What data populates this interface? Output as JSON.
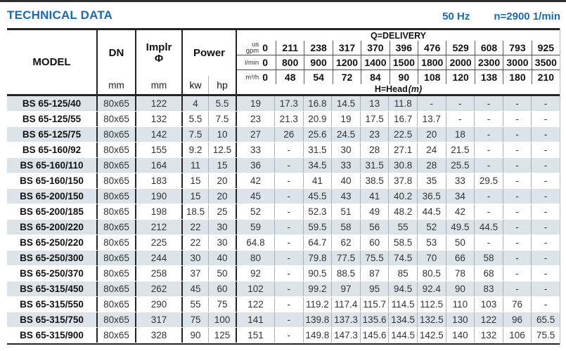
{
  "page": {
    "title": "TECHNICAL DATA",
    "frequency": "50 Hz",
    "speed": "n=2900 1/min"
  },
  "table": {
    "columns": {
      "model": "MODEL",
      "dn": "DN",
      "dn_unit": "mm",
      "impeller": "Implr",
      "impeller_symbol": "Φ",
      "impeller_unit": "mm",
      "power": "Power",
      "power_kw": "kw",
      "power_hp": "hp"
    },
    "delivery": {
      "title": "Q=DELIVERY",
      "head_title": "H=Head",
      "head_unit": "(m)",
      "unit_rows": [
        {
          "id": "usgpm",
          "label_lines": [
            "us",
            "gpm"
          ],
          "values": [
            "0",
            "211",
            "238",
            "317",
            "370",
            "396",
            "476",
            "529",
            "608",
            "793",
            "925"
          ]
        },
        {
          "id": "lmin",
          "label_lines": [
            "l/min"
          ],
          "values": [
            "0",
            "800",
            "900",
            "1200",
            "1400",
            "1500",
            "1800",
            "2000",
            "2300",
            "3000",
            "3500"
          ]
        },
        {
          "id": "m3h",
          "label_lines": [
            "m³/h"
          ],
          "values": [
            "0",
            "48",
            "54",
            "72",
            "84",
            "90",
            "108",
            "120",
            "138",
            "180",
            "210"
          ]
        }
      ]
    },
    "rows": [
      {
        "model": "BS 65-125/40",
        "dn": "80x65",
        "impeller": "122",
        "kw": "4",
        "hp": "5.5",
        "heads": [
          "19",
          "17.3",
          "16.8",
          "14.5",
          "13",
          "11.8",
          "-",
          "-",
          "-",
          "-",
          "-"
        ]
      },
      {
        "model": "BS 65-125/55",
        "dn": "80x65",
        "impeller": "132",
        "kw": "5.5",
        "hp": "7.5",
        "heads": [
          "23",
          "21.3",
          "20.9",
          "19",
          "17.5",
          "16.7",
          "13.7",
          "-",
          "-",
          "-",
          "-"
        ]
      },
      {
        "model": "BS 65-125/75",
        "dn": "80x65",
        "impeller": "142",
        "kw": "7.5",
        "hp": "10",
        "heads": [
          "27",
          "26",
          "25.6",
          "24.5",
          "23",
          "22.5",
          "20",
          "18",
          "-",
          "-",
          "-"
        ]
      },
      {
        "model": "BS 65-160/92",
        "dn": "80x65",
        "impeller": "155",
        "kw": "9.2",
        "hp": "12.5",
        "heads": [
          "33",
          "-",
          "31.5",
          "30",
          "28",
          "27.1",
          "24",
          "21.5",
          "-",
          "-",
          "-"
        ]
      },
      {
        "model": "BS 65-160/110",
        "dn": "80x65",
        "impeller": "164",
        "kw": "11",
        "hp": "15",
        "heads": [
          "36",
          "-",
          "34.5",
          "33",
          "31.5",
          "30.8",
          "28",
          "25.5",
          "-",
          "-",
          "-"
        ]
      },
      {
        "model": "BS 65-160/150",
        "dn": "80x65",
        "impeller": "183",
        "kw": "15",
        "hp": "20",
        "heads": [
          "42",
          "-",
          "41",
          "40",
          "38.5",
          "37.8",
          "35",
          "33",
          "29.5",
          "-",
          "-"
        ]
      },
      {
        "model": "BS 65-200/150",
        "dn": "80x65",
        "impeller": "190",
        "kw": "15",
        "hp": "20",
        "heads": [
          "45",
          "-",
          "45.5",
          "43",
          "41",
          "40.2",
          "36.5",
          "34",
          "-",
          "-",
          "-"
        ]
      },
      {
        "model": "BS 65-200/185",
        "dn": "80x65",
        "impeller": "198",
        "kw": "18.5",
        "hp": "25",
        "heads": [
          "52",
          "-",
          "52.3",
          "51",
          "49",
          "48.2",
          "44.5",
          "42",
          "-",
          "-",
          "-"
        ]
      },
      {
        "model": "BS 65-200/220",
        "dn": "80x65",
        "impeller": "212",
        "kw": "22",
        "hp": "30",
        "heads": [
          "59",
          "-",
          "59.5",
          "58",
          "56",
          "55",
          "52",
          "49.5",
          "44.5",
          "-",
          "-"
        ]
      },
      {
        "model": "BS 65-250/220",
        "dn": "80x65",
        "impeller": "225",
        "kw": "22",
        "hp": "30",
        "heads": [
          "64.8",
          "-",
          "64.7",
          "62",
          "60",
          "58.5",
          "53",
          "50",
          "-",
          "-",
          "-"
        ]
      },
      {
        "model": "BS 65-250/300",
        "dn": "80x65",
        "impeller": "244",
        "kw": "30",
        "hp": "40",
        "heads": [
          "80",
          "-",
          "79.8",
          "77.5",
          "75.5",
          "74.5",
          "70",
          "66",
          "58",
          "-",
          "-"
        ]
      },
      {
        "model": "BS 65-250/370",
        "dn": "80x65",
        "impeller": "258",
        "kw": "37",
        "hp": "50",
        "heads": [
          "92",
          "-",
          "90.5",
          "88.5",
          "87",
          "85",
          "80.5",
          "78",
          "68",
          "-",
          "-"
        ]
      },
      {
        "model": "BS 65-315/450",
        "dn": "80x65",
        "impeller": "262",
        "kw": "45",
        "hp": "60",
        "heads": [
          "102",
          "-",
          "99.2",
          "97",
          "95",
          "94.5",
          "92.4",
          "90",
          "83",
          "-",
          "-"
        ]
      },
      {
        "model": "BS 65-315/550",
        "dn": "80x65",
        "impeller": "290",
        "kw": "55",
        "hp": "75",
        "heads": [
          "122",
          "-",
          "119.2",
          "117.4",
          "115.7",
          "114.5",
          "112.5",
          "110",
          "103",
          "76",
          "-"
        ]
      },
      {
        "model": "BS 65-315/750",
        "dn": "80x65",
        "impeller": "317",
        "kw": "75",
        "hp": "100",
        "heads": [
          "141",
          "-",
          "139.8",
          "137.3",
          "135.6",
          "134.5",
          "132.5",
          "130",
          "122",
          "96",
          "65.5"
        ]
      },
      {
        "model": "BS 65-315/900",
        "dn": "80x65",
        "impeller": "328",
        "kw": "90",
        "hp": "125",
        "heads": [
          "151",
          "-",
          "149.8",
          "147.3",
          "145.6",
          "144.5",
          "142.5",
          "140",
          "132",
          "106",
          "75.5"
        ]
      }
    ]
  },
  "colors": {
    "accent_blue": "#1c6aad",
    "row_stripe": "#dce3e9",
    "border_dark": "#242424"
  }
}
